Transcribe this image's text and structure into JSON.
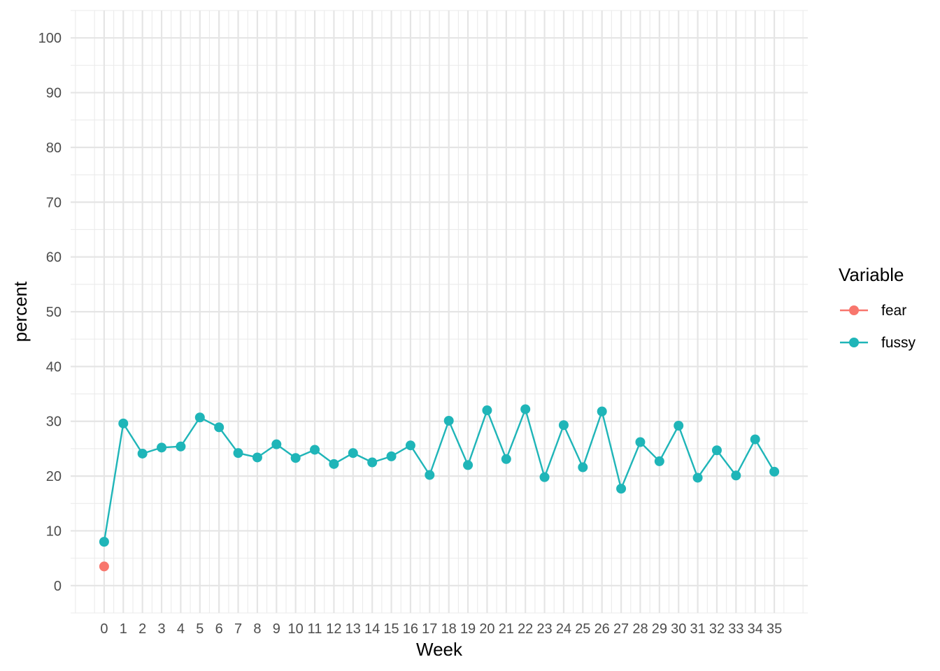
{
  "chart_data": {
    "type": "line",
    "title": "",
    "xlabel": "Week",
    "ylabel": "percent",
    "x": [
      0,
      1,
      2,
      3,
      4,
      5,
      6,
      7,
      8,
      9,
      10,
      11,
      12,
      13,
      14,
      15,
      16,
      17,
      18,
      19,
      20,
      21,
      22,
      23,
      24,
      25,
      26,
      27,
      28,
      29,
      30,
      31,
      32,
      33,
      34,
      35
    ],
    "x_ticks": [
      "0",
      "1",
      "2",
      "3",
      "4",
      "5",
      "6",
      "7",
      "8",
      "9",
      "10",
      "11",
      "12",
      "13",
      "14",
      "15",
      "16",
      "17",
      "18",
      "19",
      "20",
      "21",
      "22",
      "23",
      "24",
      "25",
      "26",
      "27",
      "28",
      "29",
      "30",
      "31",
      "32",
      "33",
      "34",
      "35"
    ],
    "y_ticks": [
      "0",
      "10",
      "20",
      "30",
      "40",
      "50",
      "60",
      "70",
      "80",
      "90",
      "100"
    ],
    "xlim": [
      -1.75,
      36.75
    ],
    "ylim": [
      -5,
      105
    ],
    "grid": true,
    "legend": {
      "title": "Variable",
      "placement": "right",
      "entries": [
        "fear",
        "fussy"
      ]
    },
    "series": [
      {
        "name": "fear",
        "color": "#F8766D",
        "x": [
          0
        ],
        "values": [
          3.5
        ]
      },
      {
        "name": "fussy",
        "color": "#1FB5B8",
        "x": [
          0,
          1,
          2,
          3,
          4,
          5,
          6,
          7,
          8,
          9,
          10,
          11,
          12,
          13,
          14,
          15,
          16,
          17,
          18,
          19,
          20,
          21,
          22,
          23,
          24,
          25,
          26,
          27,
          28,
          29,
          30,
          31,
          32,
          33,
          34,
          35
        ],
        "values": [
          8.0,
          29.6,
          24.1,
          25.2,
          25.4,
          30.7,
          28.9,
          24.2,
          23.4,
          25.8,
          23.3,
          24.8,
          22.2,
          24.2,
          22.5,
          23.6,
          25.6,
          20.2,
          30.1,
          22.0,
          32.0,
          23.1,
          32.2,
          19.8,
          29.3,
          21.6,
          31.8,
          17.7,
          26.2,
          22.7,
          29.2,
          19.7,
          24.7,
          20.1,
          26.7,
          20.8
        ]
      }
    ]
  }
}
